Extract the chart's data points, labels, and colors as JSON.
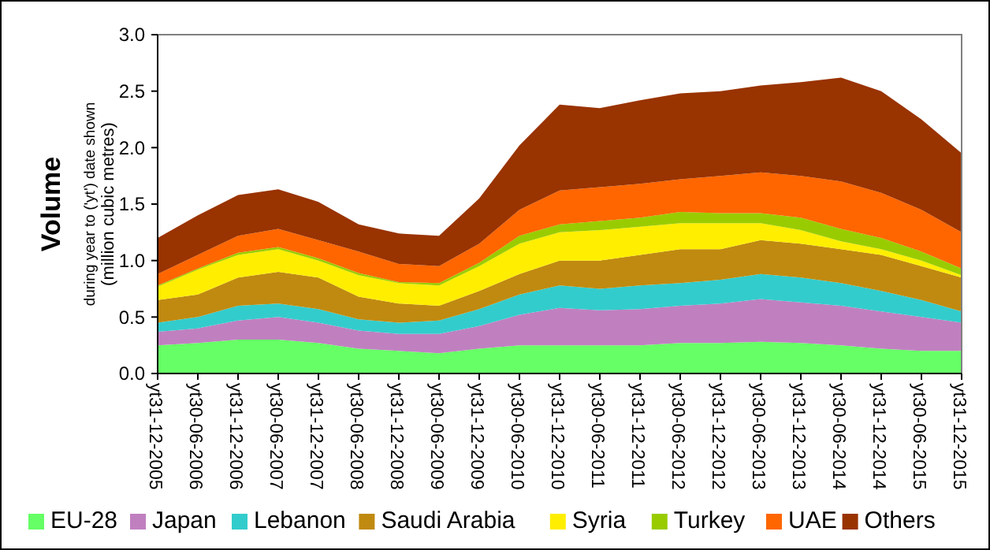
{
  "chart_data": {
    "type": "area",
    "stacked": true,
    "ylabel": "Volume\nduring year to ('yt') date shown\n(million cubic metres)",
    "categories": [
      "yt31-12-2005",
      "yt30-06-2006",
      "yt31-12-2006",
      "yt30-06-2007",
      "yt31-12-2007",
      "yt30-06-2008",
      "yt31-12-2008",
      "yt30-06-2009",
      "yt31-12-2009",
      "yt30-06-2010",
      "yt31-12-2010",
      "yt30-06-2011",
      "yt31-12-2011",
      "yt30-06-2012",
      "yt31-12-2012",
      "yt30-06-2013",
      "yt31-12-2013",
      "yt30-06-2014",
      "yt31-12-2014",
      "yt30-06-2015",
      "yt31-12-2015"
    ],
    "ylim": [
      0,
      3
    ],
    "yticks": [
      {
        "value": 0,
        "label": "0.0"
      },
      {
        "value": 0.5,
        "label": "0.5"
      },
      {
        "value": 1,
        "label": "1.0"
      },
      {
        "value": 1.5,
        "label": "1.5"
      },
      {
        "value": 2,
        "label": "2.0"
      },
      {
        "value": 2.5,
        "label": "2.5"
      },
      {
        "value": 3,
        "label": "3.0"
      }
    ],
    "grid": false,
    "legend": "bottom",
    "series": [
      {
        "name": "EU-28",
        "color": "#66ff66",
        "values": [
          0.25,
          0.27,
          0.3,
          0.3,
          0.27,
          0.22,
          0.2,
          0.18,
          0.22,
          0.25,
          0.25,
          0.25,
          0.25,
          0.27,
          0.27,
          0.28,
          0.27,
          0.25,
          0.22,
          0.2,
          0.2
        ]
      },
      {
        "name": "Japan",
        "color": "#c080c0",
        "values": [
          0.12,
          0.13,
          0.17,
          0.2,
          0.18,
          0.16,
          0.15,
          0.17,
          0.2,
          0.27,
          0.33,
          0.31,
          0.32,
          0.33,
          0.35,
          0.38,
          0.36,
          0.35,
          0.33,
          0.3,
          0.25
        ]
      },
      {
        "name": "Lebanon",
        "color": "#33cccc",
        "values": [
          0.08,
          0.1,
          0.13,
          0.12,
          0.12,
          0.1,
          0.1,
          0.12,
          0.15,
          0.18,
          0.2,
          0.19,
          0.21,
          0.2,
          0.21,
          0.22,
          0.22,
          0.2,
          0.18,
          0.15,
          0.1
        ]
      },
      {
        "name": "Saudi Arabia",
        "color": "#c08a10",
        "values": [
          0.2,
          0.2,
          0.25,
          0.28,
          0.28,
          0.2,
          0.17,
          0.13,
          0.16,
          0.18,
          0.22,
          0.25,
          0.27,
          0.3,
          0.27,
          0.3,
          0.3,
          0.3,
          0.32,
          0.3,
          0.3
        ]
      },
      {
        "name": "Syria",
        "color": "#ffee00",
        "values": [
          0.12,
          0.22,
          0.2,
          0.2,
          0.15,
          0.19,
          0.18,
          0.18,
          0.22,
          0.27,
          0.25,
          0.27,
          0.25,
          0.23,
          0.23,
          0.15,
          0.12,
          0.07,
          0.05,
          0.05,
          0.02
        ]
      },
      {
        "name": "Turkey",
        "color": "#99cc00",
        "values": [
          0.01,
          0.01,
          0.02,
          0.02,
          0.02,
          0.02,
          0.01,
          0.02,
          0.03,
          0.07,
          0.07,
          0.08,
          0.08,
          0.1,
          0.09,
          0.09,
          0.11,
          0.11,
          0.1,
          0.08,
          0.06
        ]
      },
      {
        "name": "UAE",
        "color": "#ff6600",
        "values": [
          0.1,
          0.12,
          0.15,
          0.16,
          0.16,
          0.19,
          0.16,
          0.15,
          0.17,
          0.23,
          0.3,
          0.3,
          0.3,
          0.29,
          0.33,
          0.36,
          0.37,
          0.42,
          0.4,
          0.37,
          0.32
        ]
      },
      {
        "name": "Others",
        "color": "#993300",
        "values": [
          0.32,
          0.35,
          0.36,
          0.35,
          0.34,
          0.24,
          0.27,
          0.27,
          0.4,
          0.57,
          0.76,
          0.7,
          0.74,
          0.76,
          0.75,
          0.77,
          0.83,
          0.92,
          0.9,
          0.8,
          0.7
        ]
      }
    ]
  }
}
